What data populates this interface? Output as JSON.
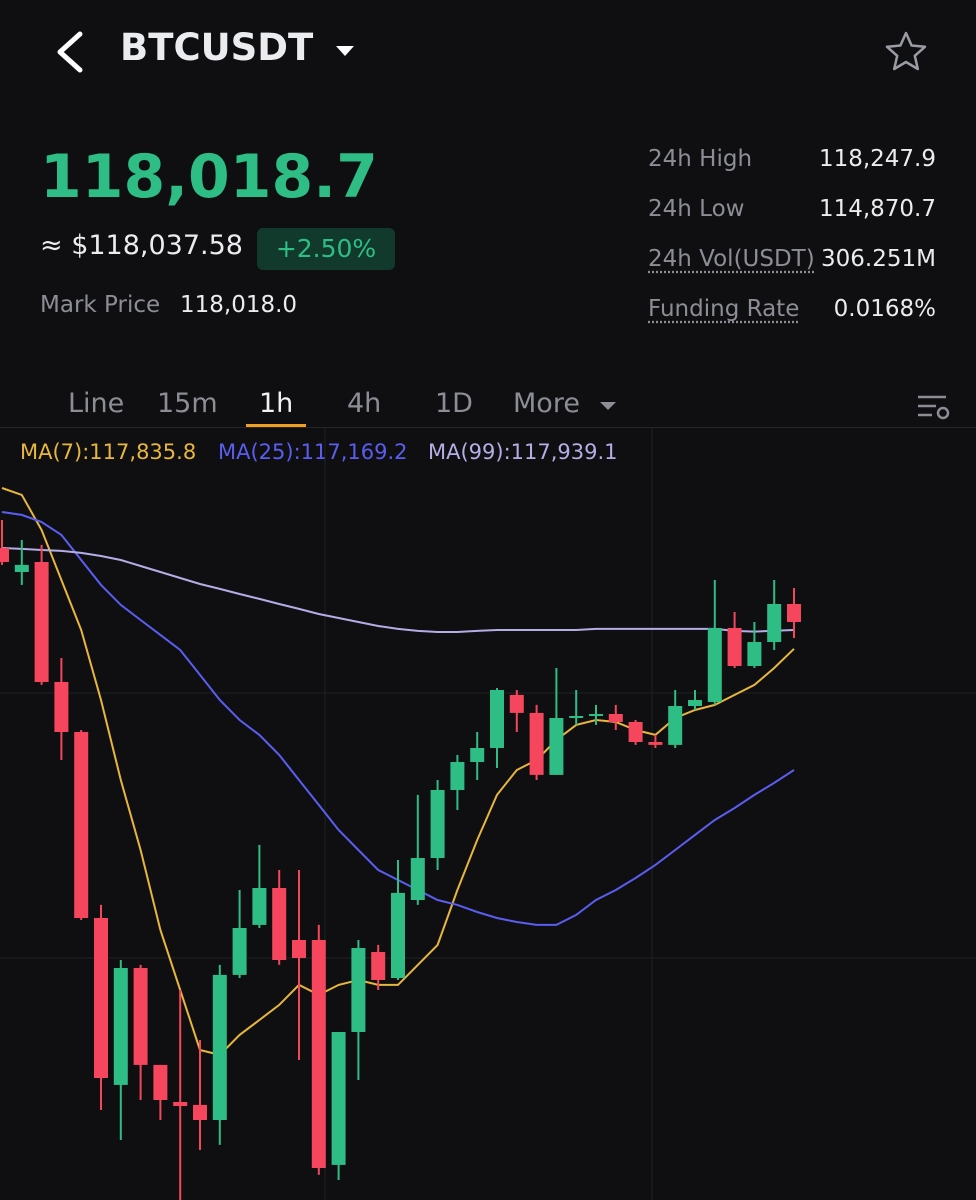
{
  "header": {
    "symbol": "BTCUSDT"
  },
  "price": {
    "last": "118,018.7",
    "usd": "≈ $118,037.58",
    "change": "+2.50%",
    "mark_label": "Mark Price",
    "mark_value": "118,018.0"
  },
  "stats": [
    {
      "label": "24h High",
      "value": "118,247.9"
    },
    {
      "label": "24h Low",
      "value": "114,870.7"
    },
    {
      "label": "24h Vol(USDT)",
      "value": "306.251M"
    },
    {
      "label": "Funding Rate",
      "value": "0.0168%"
    }
  ],
  "tabs": [
    "Line",
    "15m",
    "1h",
    "4h",
    "1D",
    "More"
  ],
  "active_tab": 2,
  "ma_legend": [
    "MA(7):117,835.8",
    "MA(25):117,169.2",
    "MA(99):117,939.1"
  ],
  "chart_data": {
    "type": "candlestick",
    "ylim": [
      114804,
      119039
    ],
    "up_color": "#2ebd85",
    "down_color": "#f6465d",
    "open": [
      118390,
      118258,
      118313,
      117653,
      117378,
      116355,
      115437,
      116080,
      115547,
      115343,
      115327,
      115244,
      116042,
      116317,
      116520,
      116234,
      116234,
      114997,
      115728,
      116168,
      116025,
      116454,
      116685,
      117059,
      117213,
      117290,
      117582,
      117483,
      117142,
      117455,
      117466,
      117477,
      117433,
      117323,
      117307,
      117521,
      117543,
      117950,
      117741,
      117873,
      118082
    ],
    "high": [
      118544,
      118434,
      118407,
      117785,
      117389,
      116427,
      116124,
      116097,
      115547,
      115959,
      115684,
      116097,
      116509,
      116757,
      116619,
      116619,
      116317,
      115728,
      116234,
      116207,
      116674,
      117032,
      117114,
      117252,
      117378,
      117620,
      117609,
      117527,
      117730,
      117609,
      117527,
      117527,
      117444,
      117362,
      117609,
      117609,
      118214,
      118038,
      117983,
      118214,
      118170
    ],
    "low": [
      118297,
      118187,
      117637,
      117224,
      116344,
      115299,
      115134,
      115354,
      115244,
      114804,
      115079,
      115107,
      116025,
      116300,
      116097,
      115574,
      114942,
      114914,
      115464,
      115959,
      116014,
      116427,
      116619,
      116949,
      117114,
      117180,
      117378,
      117114,
      117142,
      117417,
      117417,
      117389,
      117307,
      117290,
      117290,
      117499,
      117527,
      117730,
      117730,
      117829,
      117895
    ],
    "close": [
      118313,
      118297,
      117653,
      117378,
      116355,
      115475,
      116080,
      115547,
      115354,
      115321,
      115244,
      116042,
      116300,
      116520,
      116124,
      116135,
      114980,
      115728,
      116190,
      116014,
      116493,
      116685,
      117059,
      117213,
      117290,
      117609,
      117483,
      117142,
      117455,
      117466,
      117477,
      117433,
      117323,
      117307,
      117521,
      117554,
      117950,
      117741,
      117873,
      118082,
      117983
    ],
    "lines": [
      {
        "name": "MA(7)",
        "color": "#e8b63c",
        "values": [
          118720,
          118682,
          118489,
          118214,
          117939,
          117554,
          117114,
          116729,
          116289,
          115959,
          115629,
          115602,
          115712,
          115794,
          115877,
          115987,
          115932,
          115987,
          116014,
          115987,
          115987,
          116097,
          116207,
          116509,
          116784,
          117032,
          117169,
          117224,
          117334,
          117417,
          117444,
          117433,
          117389,
          117362,
          117455,
          117499,
          117527,
          117582,
          117637,
          117730,
          117835.8
        ]
      },
      {
        "name": "MA(25)",
        "color": "#5a5ef0",
        "values": [
          118588,
          118572,
          118533,
          118462,
          118324,
          118187,
          118077,
          117994,
          117912,
          117829,
          117692,
          117554,
          117444,
          117362,
          117252,
          117114,
          116977,
          116839,
          116729,
          116619,
          116564,
          116509,
          116454,
          116427,
          116388,
          116355,
          116333,
          116317,
          116317,
          116372,
          116454,
          116509,
          116575,
          116647,
          116729,
          116812,
          116894,
          116960,
          117032,
          117098,
          117169.2
        ]
      },
      {
        "name": "MA(99)",
        "color": "#b3aee6",
        "values": [
          118390,
          118385,
          118379,
          118374,
          118363,
          118346,
          118324,
          118291,
          118258,
          118225,
          118192,
          118165,
          118137,
          118110,
          118082,
          118055,
          118027,
          118005,
          117983,
          117961,
          117945,
          117934,
          117928,
          117928,
          117934,
          117939,
          117939,
          117939,
          117939,
          117939,
          117945,
          117945,
          117945,
          117945,
          117945,
          117945,
          117945,
          117934,
          117930,
          117935,
          117939.1
        ]
      }
    ]
  }
}
